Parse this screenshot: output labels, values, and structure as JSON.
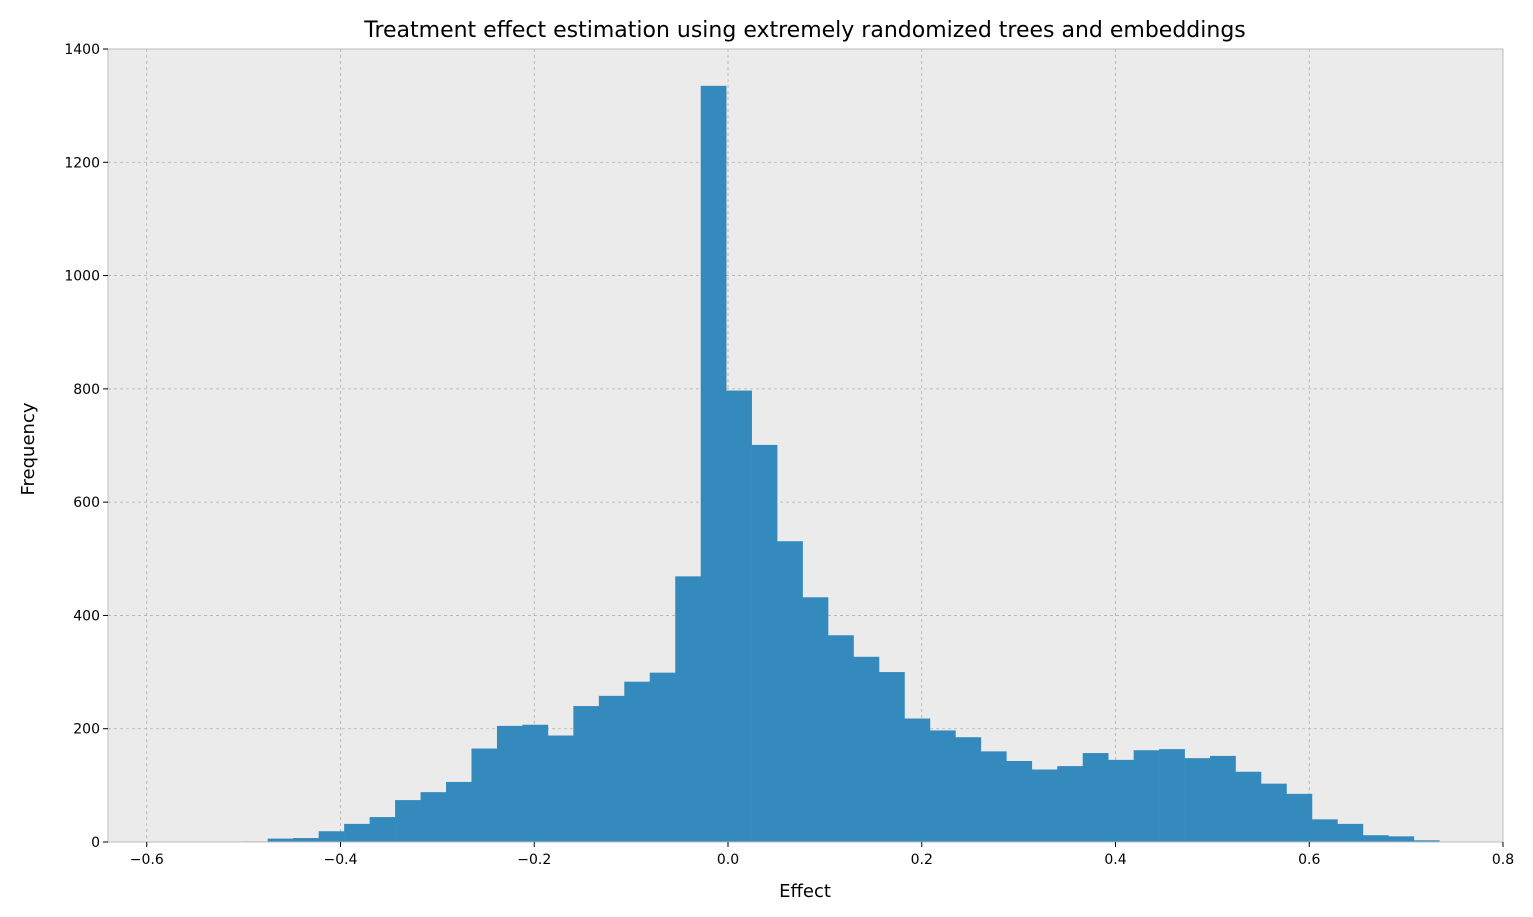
{
  "chart_data": {
    "type": "bar",
    "title": "Treatment effect estimation using extremely randomized trees and embeddings",
    "xlabel": "Effect",
    "ylabel": "Frequency",
    "xlim": [
      -0.64,
      0.8
    ],
    "ylim": [
      0,
      1400
    ],
    "grid": true,
    "bar_color": "#348ABD",
    "plot_background": "#EBEBEB",
    "grid_color": "#B0B0B0",
    "x_ticks": [
      -0.6,
      -0.4,
      -0.2,
      0.0,
      0.2,
      0.4,
      0.6,
      0.8
    ],
    "x_tick_labels": [
      "−0.6",
      "−0.4",
      "−0.2",
      "0.0",
      "0.2",
      "0.4",
      "0.6",
      "0.8"
    ],
    "y_ticks": [
      0,
      200,
      400,
      600,
      800,
      1000,
      1200,
      1400
    ],
    "y_tick_labels": [
      "0",
      "200",
      "400",
      "600",
      "800",
      "1000",
      "1200",
      "1400"
    ],
    "bin_start": -0.5014,
    "bin_width": 0.02629,
    "values": [
      1,
      6,
      7,
      19,
      32,
      44,
      74,
      88,
      106,
      165,
      205,
      207,
      188,
      240,
      258,
      283,
      299,
      469,
      1335,
      797,
      701,
      531,
      432,
      365,
      327,
      300,
      218,
      197,
      185,
      160,
      143,
      128,
      134,
      157,
      145,
      162,
      164,
      148,
      152,
      124,
      103,
      85,
      40,
      32,
      12,
      10,
      3
    ]
  }
}
